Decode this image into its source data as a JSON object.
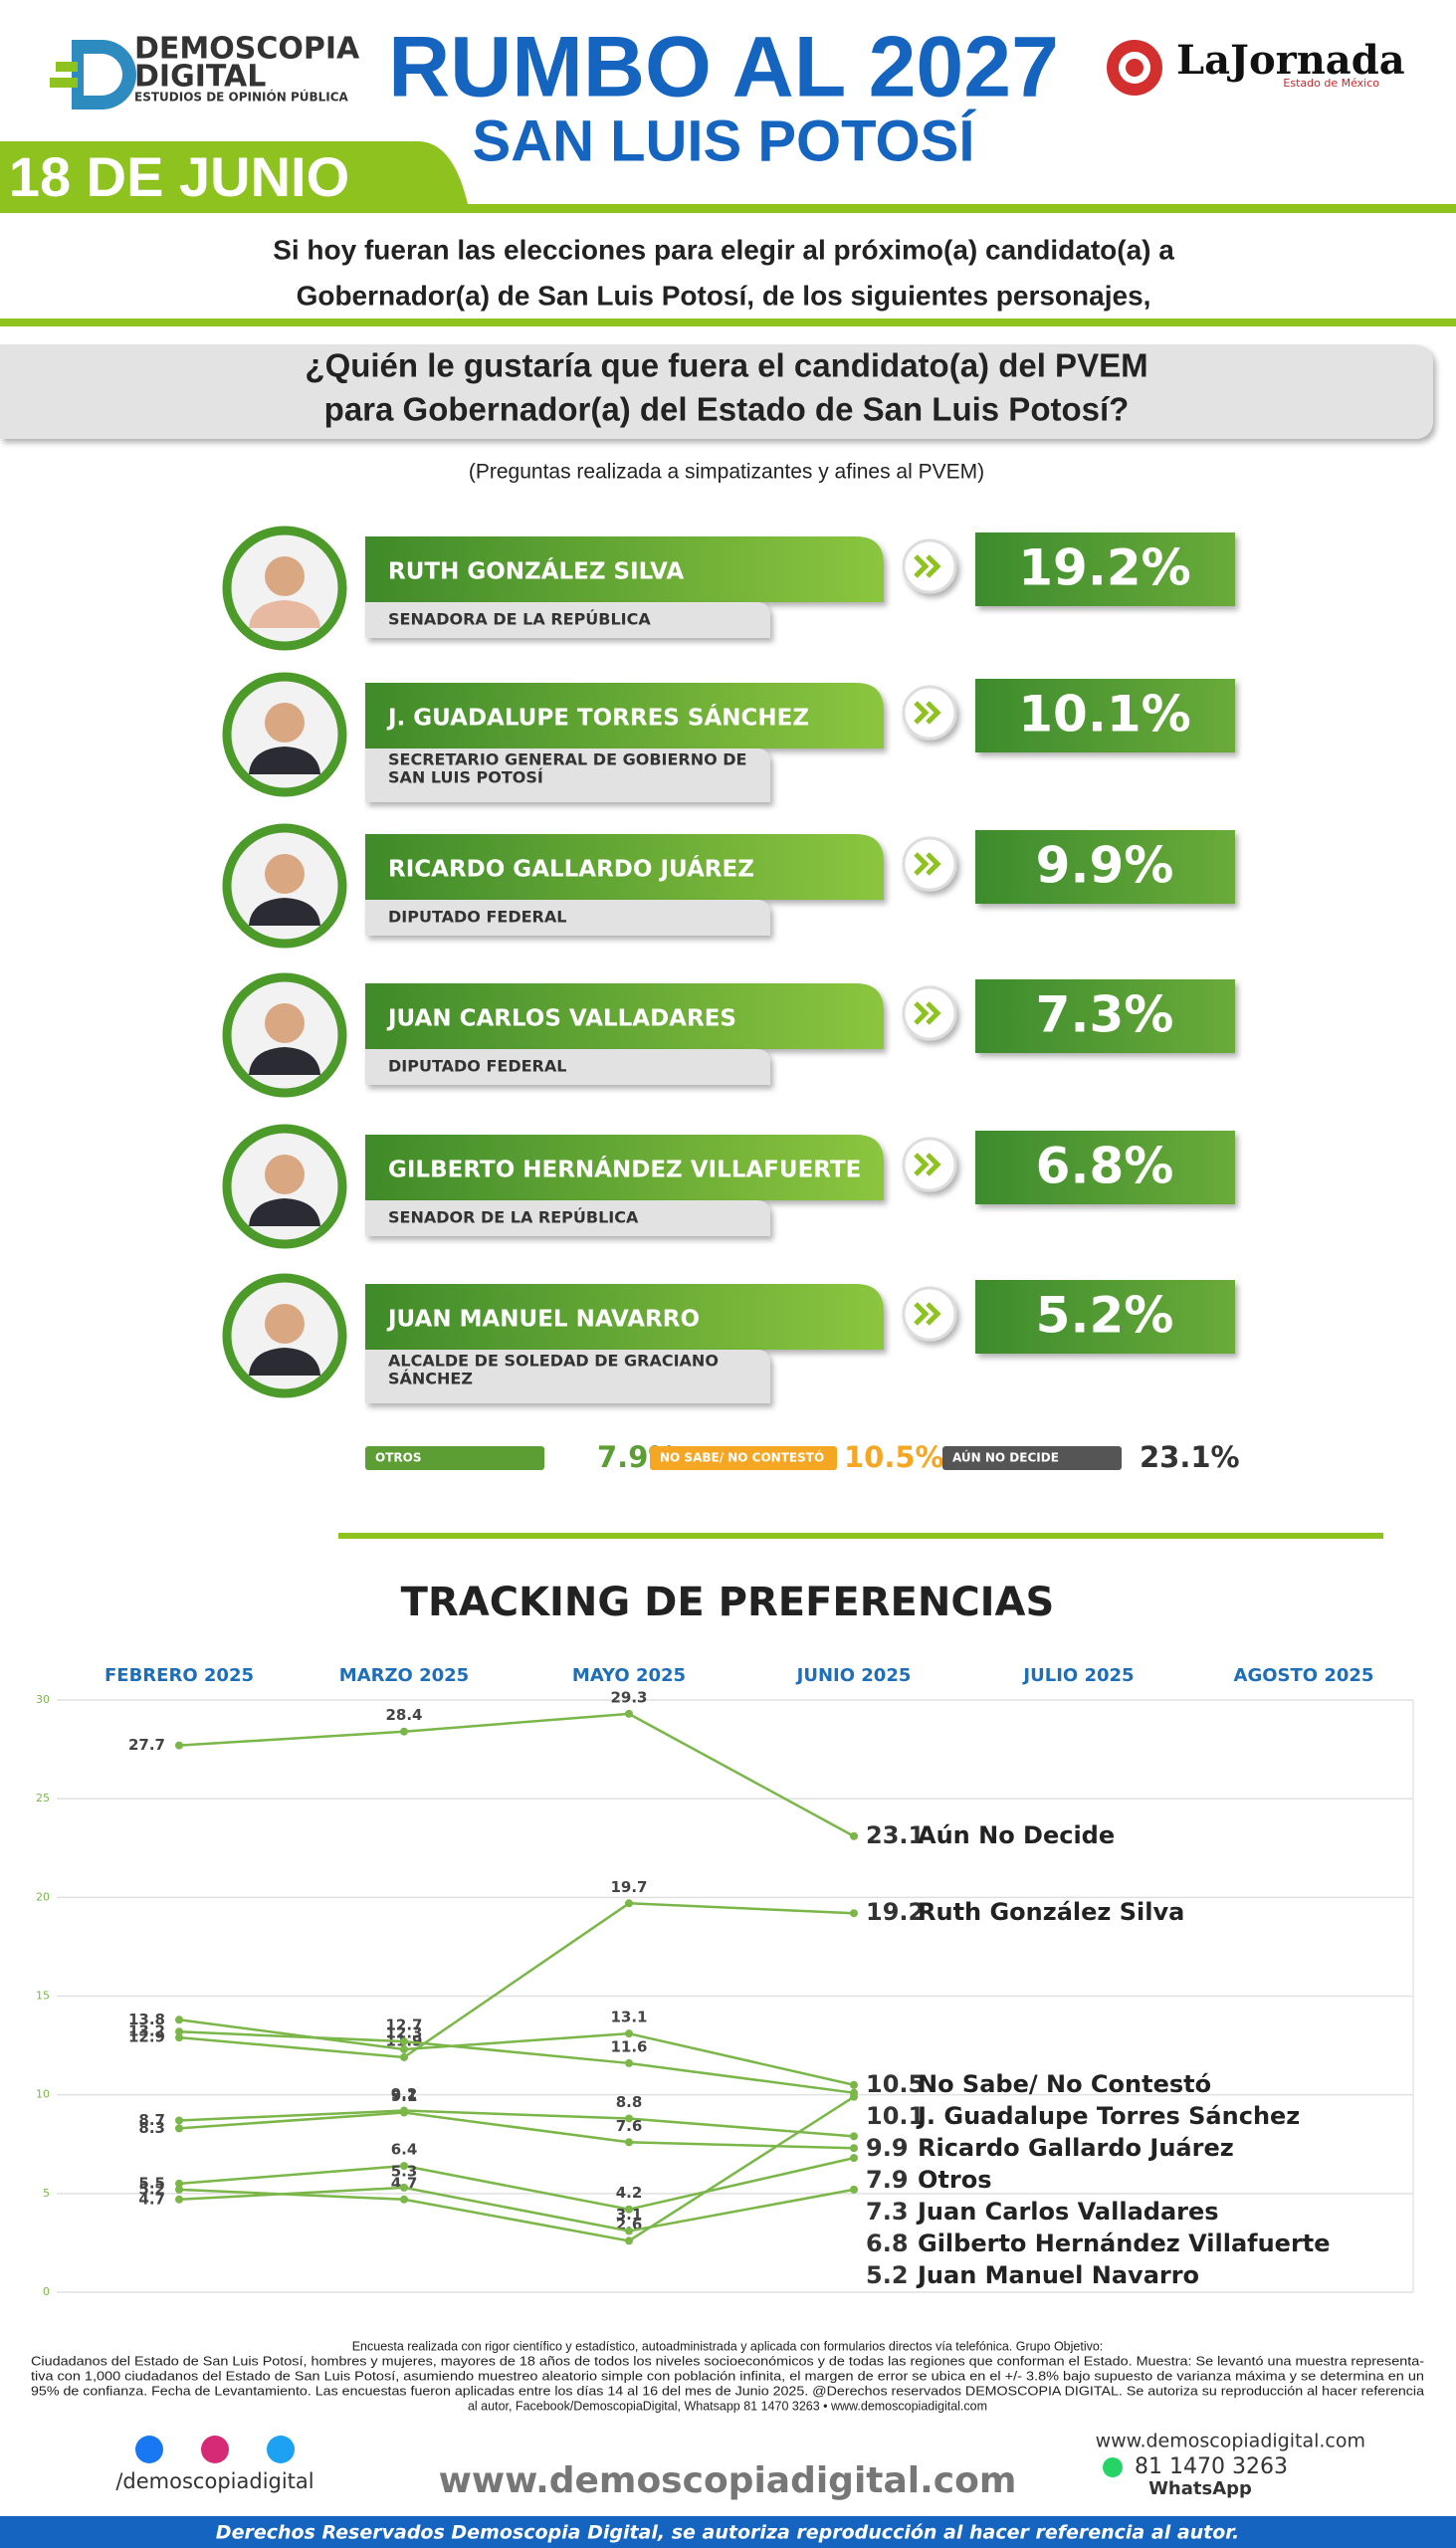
{
  "header": {
    "logo_name": "DEMOSCOPIA",
    "logo_name2": "DIGITAL",
    "logo_tagline": "ESTUDIOS DE OPINIÓN PÚBLICA",
    "title": "RUMBO AL 2027",
    "subtitle": "SAN LUIS POTOSÍ",
    "partner": "LaJornada",
    "partner_tagline": "Estado de México",
    "date": "18 DE JUNIO"
  },
  "intro": [
    "Si hoy fueran las elecciones para elegir al próximo(a) candidato(a) a",
    "Gobernador(a) de San Luis Potosí, de los siguientes personajes,"
  ],
  "question": [
    "¿Quién le gustaría que fuera el candidato(a) del PVEM",
    "para Gobernador(a) del Estado de San Luis Potosí?"
  ],
  "note": "(Preguntas realizada a simpatizantes y afines al PVEM)",
  "candidates": [
    {
      "name": "RUTH GONZÁLEZ SILVA",
      "role": [
        "SENADORA DE LA REPÚBLICA"
      ],
      "percent": "19.2%"
    },
    {
      "name": "J. GUADALUPE TORRES SÁNCHEZ",
      "role": [
        "SECRETARIO GENERAL DE GOBIERNO DE",
        "SAN LUIS POTOSÍ"
      ],
      "percent": "10.1%"
    },
    {
      "name": "RICARDO GALLARDO JUÁREZ",
      "role": [
        "DIPUTADO FEDERAL"
      ],
      "percent": "9.9%"
    },
    {
      "name": "JUAN CARLOS VALLADARES",
      "role": [
        "DIPUTADO FEDERAL"
      ],
      "percent": "7.3%"
    },
    {
      "name": "GILBERTO HERNÁNDEZ VILLAFUERTE",
      "role": [
        "SENADOR DE LA REPÚBLICA"
      ],
      "percent": "6.8%"
    },
    {
      "name": "JUAN MANUEL NAVARRO",
      "role": [
        "ALCALDE DE SOLEDAD DE GRACIANO",
        "SÁNCHEZ"
      ],
      "percent": "5.2%"
    }
  ],
  "others": [
    {
      "label": "OTROS",
      "percent": "7.9%",
      "color": "#5c9e34"
    },
    {
      "label": "NO SABE/ NO CONTESTÓ",
      "percent": "10.5%",
      "color": "#f5a623"
    },
    {
      "label": "AÚN NO DECIDE",
      "percent": "23.1%",
      "color": "#333333"
    }
  ],
  "chart_data": {
    "type": "line",
    "title": "TRACKING DE PREFERENCIAS",
    "categories": [
      "FEBRERO 2025",
      "MARZO 2025",
      "MAYO 2025",
      "JUNIO 2025",
      "JULIO 2025",
      "AGOSTO 2025"
    ],
    "ylim": [
      0,
      30
    ],
    "yticks": [
      0,
      5,
      10,
      15,
      20,
      25,
      30
    ],
    "grid": true,
    "color": "#7ab648",
    "series": [
      {
        "name": "Aún No Decide",
        "values": [
          27.7,
          28.4,
          29.3,
          23.1,
          null,
          null
        ]
      },
      {
        "name": "Ruth González Silva",
        "values": [
          12.9,
          11.9,
          19.7,
          19.2,
          null,
          null
        ]
      },
      {
        "name": "No Sabe/ No Contestó",
        "values": [
          13.8,
          12.3,
          13.1,
          10.5,
          null,
          null
        ]
      },
      {
        "name": "J. Guadalupe Torres Sánchez",
        "values": [
          13.2,
          12.7,
          11.6,
          10.1,
          null,
          null
        ]
      },
      {
        "name": "Ricardo Gallardo Juárez",
        "values": [
          5.2,
          4.7,
          2.6,
          9.9,
          null,
          null
        ]
      },
      {
        "name": "Otros",
        "values": [
          8.7,
          9.2,
          8.8,
          7.9,
          null,
          null
        ]
      },
      {
        "name": "Juan Carlos Valladares",
        "values": [
          8.3,
          9.1,
          7.6,
          7.3,
          null,
          null
        ]
      },
      {
        "name": "Gilberto Hernández Villafuerte",
        "values": [
          5.5,
          6.4,
          4.2,
          6.8,
          null,
          null
        ]
      },
      {
        "name": "Juan Manuel Navarro",
        "values": [
          4.7,
          5.3,
          3.1,
          5.2,
          null,
          null
        ]
      }
    ]
  },
  "footer": {
    "methodology": [
      "Encuesta realizada con rigor científico y estadístico, autoadministrada y aplicada con formularios directos vía telefónica. Grupo Objetivo:",
      "Ciudadanos del Estado de San Luis Potosí, hombres y mujeres, mayores de 18 años de todos los niveles socioeconómicos y de todas las regiones que conforman el Estado. Muestra: Se levantó una muestra representa-",
      "tiva con 1,000 ciudadanos del Estado de San Luis Potosí, asumiendo muestreo aleatorio simple con población infinita, el margen de error se ubica en el +/- 3.8% bajo supuesto de varianza máxima y se determina en un",
      "95% de confianza. Fecha de Levantamiento. Las encuestas fueron aplicadas entre los días 14 al 16 del mes de Junio 2025. @Derechos reservados DEMOSCOPIA DIGITAL. Se autoriza su reproducción al hacer referencia",
      "al autor, Facebook/DemoscopiaDigital, Whatsapp 81 1470 3263 • www.demoscopiadigital.com"
    ],
    "social": "/demoscopiadigital",
    "website": "www.demoscopiadigital.com",
    "website_small": "www.demoscopiadigital.com",
    "phone": "81 1470 3263",
    "phone_label": "WhatsApp",
    "rights": "Derechos Reservados Demoscopia Digital, se autoriza reproducción al hacer referencia al autor."
  }
}
